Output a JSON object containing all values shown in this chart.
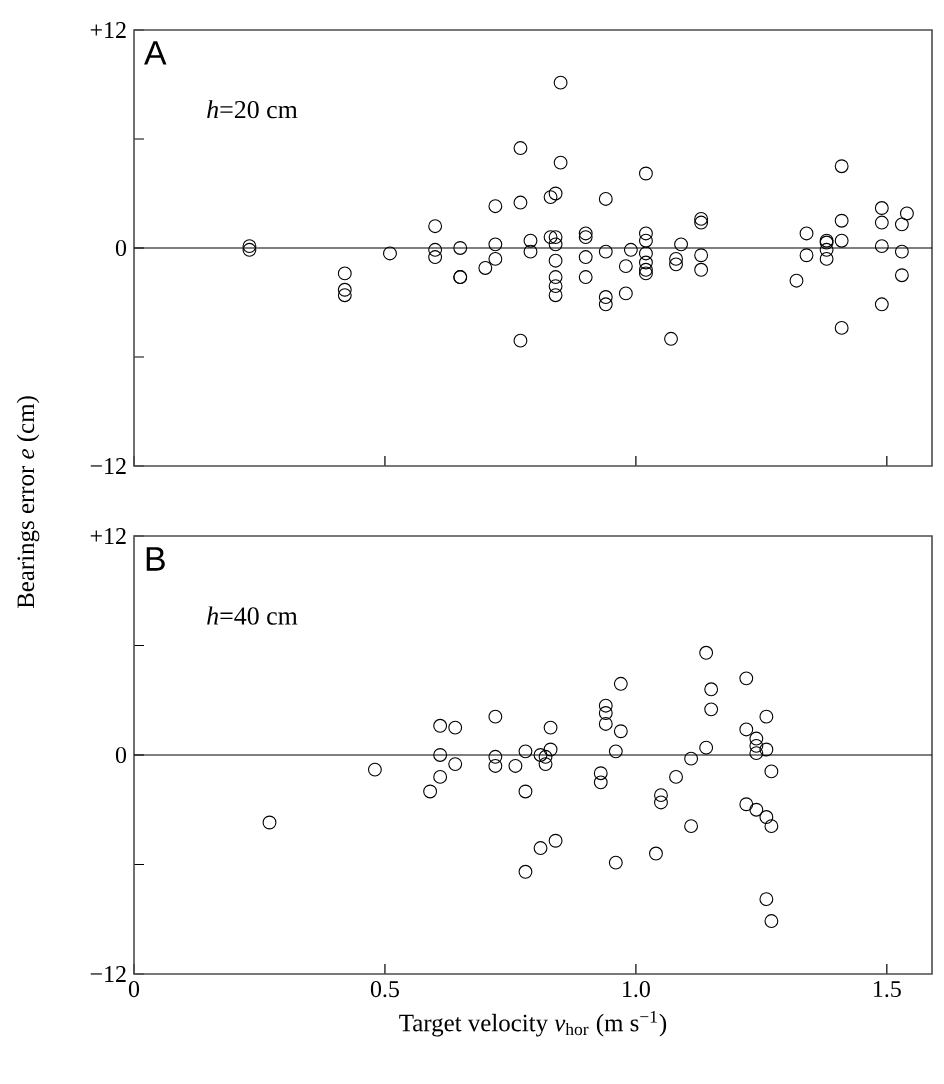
{
  "chart_data": [
    {
      "type": "scatter",
      "ylabel": "Bearings error *e* (cm)",
      "annotations": [
        "A",
        "*h*=20 cm"
      ],
      "marker": "circle",
      "tick_labels": "y",
      "xlim": [
        0,
        1.59
      ],
      "ylim": [
        -12,
        12
      ],
      "xticks": [
        0,
        0.5,
        1,
        1.5
      ],
      "yticks": [
        {
          "value": -12,
          "label": "−12"
        },
        {
          "value": -6,
          "label": null
        },
        0,
        {
          "value": 6,
          "label": null
        },
        {
          "value": 12,
          "label": "+12"
        }
      ],
      "ref_lines": [
        {
          "axis": "y",
          "value": 0,
          "color": "#000000"
        }
      ],
      "series": [
        {
          "color": "#000000",
          "x": [
            0.23,
            0.23,
            0.42,
            0.42,
            0.42,
            0.51,
            0.6,
            0.6,
            0.6,
            0.65,
            0.65,
            0.65,
            0.7,
            0.72,
            0.72,
            0.72,
            0.77,
            0.77,
            0.77,
            0.79,
            0.79,
            0.85,
            0.85,
            0.83,
            0.84,
            0.83,
            0.84,
            0.84,
            0.84,
            0.84,
            0.84,
            0.84,
            0.9,
            0.9,
            0.9,
            0.9,
            0.94,
            0.94,
            0.94,
            0.94,
            0.98,
            0.98,
            0.99,
            1.02,
            1.02,
            1.02,
            1.02,
            1.02,
            1.02,
            1.02,
            1.09,
            1.08,
            1.08,
            1.07,
            1.13,
            1.13,
            1.13,
            1.13,
            1.32,
            1.34,
            1.34,
            1.38,
            1.38,
            1.38,
            1.38,
            1.41,
            1.41,
            1.41,
            1.41,
            1.49,
            1.49,
            1.49,
            1.49,
            1.53,
            1.53,
            1.53,
            1.54
          ],
          "values": [
            0.1,
            -0.1,
            -1.4,
            -2.3,
            -2.6,
            -0.3,
            1.2,
            -0.1,
            -0.5,
            0,
            -1.6,
            -1.6,
            -1.1,
            2.3,
            0.2,
            -0.6,
            5.5,
            2.5,
            -5.1,
            0.4,
            -0.2,
            9.1,
            4.7,
            2.8,
            3.0,
            0.6,
            0.6,
            0.2,
            -0.7,
            -1.6,
            -2.1,
            -2.6,
            0.8,
            0.6,
            -0.5,
            -1.6,
            2.7,
            -0.2,
            -2.7,
            -3.1,
            -1.0,
            -2.5,
            -0.1,
            4.1,
            0.8,
            0.4,
            -0.3,
            -0.8,
            -1.2,
            -1.4,
            0.2,
            -0.6,
            -0.9,
            -5.0,
            1.6,
            1.4,
            -0.4,
            -1.2,
            -1.8,
            0.8,
            -0.4,
            0.4,
            0.3,
            -0.1,
            -0.6,
            4.5,
            1.5,
            0.4,
            -4.4,
            2.2,
            1.4,
            0.1,
            -3.1,
            1.3,
            -0.2,
            -1.5,
            1.9
          ]
        }
      ]
    },
    {
      "type": "scatter",
      "xlabel": "Target velocity *v*$_{hor}$ (m s$^{−1}$)",
      "annotations": [
        "B",
        "*h*=40 cm"
      ],
      "marker": "circle",
      "xlim": [
        0,
        1.59
      ],
      "ylim": [
        -12,
        12
      ],
      "xticks": [
        0,
        0.5,
        {
          "value": 1,
          "label": "1.0"
        },
        1.5
      ],
      "yticks": [
        {
          "value": -12,
          "label": "−12"
        },
        {
          "value": -6,
          "label": null
        },
        0,
        {
          "value": 6,
          "label": null
        },
        {
          "value": 12,
          "label": "+12"
        }
      ],
      "ref_lines": [
        {
          "axis": "y",
          "value": 0,
          "color": "#000000"
        }
      ],
      "series": [
        {
          "color": "#000000",
          "x": [
            0.27,
            0.48,
            0.59,
            0.61,
            0.64,
            0.61,
            0.61,
            0.64,
            0.72,
            0.72,
            0.72,
            0.76,
            0.78,
            0.78,
            0.78,
            0.81,
            0.82,
            0.82,
            0.83,
            0.83,
            0.81,
            0.84,
            0.93,
            0.93,
            0.94,
            0.94,
            0.94,
            0.96,
            0.97,
            0.97,
            0.96,
            1.04,
            1.05,
            1.05,
            1.08,
            1.11,
            1.11,
            1.14,
            1.14,
            1.15,
            1.15,
            1.22,
            1.22,
            1.22,
            1.24,
            1.24,
            1.24,
            1.26,
            1.26,
            1.24,
            1.26,
            1.27,
            1.27,
            1.26,
            1.27
          ],
          "values": [
            -3.7,
            -0.8,
            -2.0,
            1.6,
            1.5,
            0,
            -1.2,
            -0.5,
            2.1,
            -0.1,
            -0.6,
            -0.6,
            0.2,
            -2.0,
            -6.4,
            0,
            -0.1,
            -0.5,
            1.5,
            0.3,
            -5.1,
            -4.7,
            -1.0,
            -1.5,
            2.7,
            2.3,
            1.7,
            0.2,
            1.3,
            3.9,
            -5.9,
            -5.4,
            -2.2,
            -2.6,
            -1.2,
            -0.2,
            -3.9,
            5.6,
            0.4,
            3.6,
            2.5,
            4.2,
            1.4,
            -2.7,
            0.9,
            0.5,
            0.1,
            0.3,
            2.1,
            -3.0,
            -3.4,
            -0.9,
            -3.9,
            -7.9,
            -9.1
          ]
        }
      ]
    }
  ]
}
